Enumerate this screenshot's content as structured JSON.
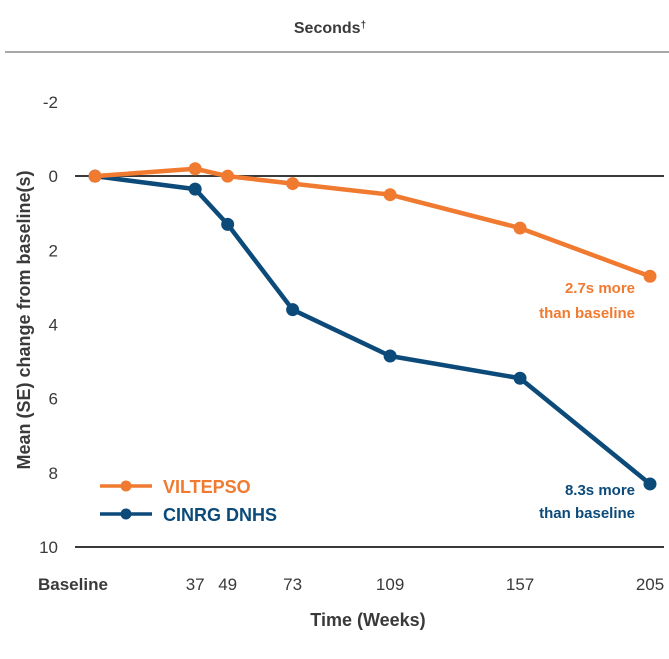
{
  "chart_data": {
    "type": "line",
    "header": "Seconds",
    "header_mark": "†",
    "xlabel": "Time (Weeks)",
    "ylabel": "Mean (SE) change from baseline(s)",
    "y_inverted": true,
    "ylim": [
      -2,
      10
    ],
    "yticks": [
      "-2",
      "0",
      "2",
      "4",
      "6",
      "8",
      "10"
    ],
    "x": [
      0,
      37,
      49,
      73,
      109,
      157,
      205
    ],
    "xtick_labels": [
      "Baseline",
      "37",
      "49",
      "73",
      "109",
      "157",
      "205"
    ],
    "series": [
      {
        "name": "VILTEPSO",
        "color": "#f07a30",
        "values": [
          0.0,
          -0.2,
          0.0,
          0.2,
          0.5,
          1.4,
          2.7
        ],
        "annotation": [
          "2.7s more",
          "than baseline"
        ]
      },
      {
        "name": "CINRG DNHS",
        "color": "#0c4a7a",
        "values": [
          0.0,
          0.35,
          1.3,
          3.6,
          4.85,
          5.45,
          8.3
        ],
        "annotation": [
          "8.3s more",
          "than baseline"
        ]
      }
    ]
  }
}
